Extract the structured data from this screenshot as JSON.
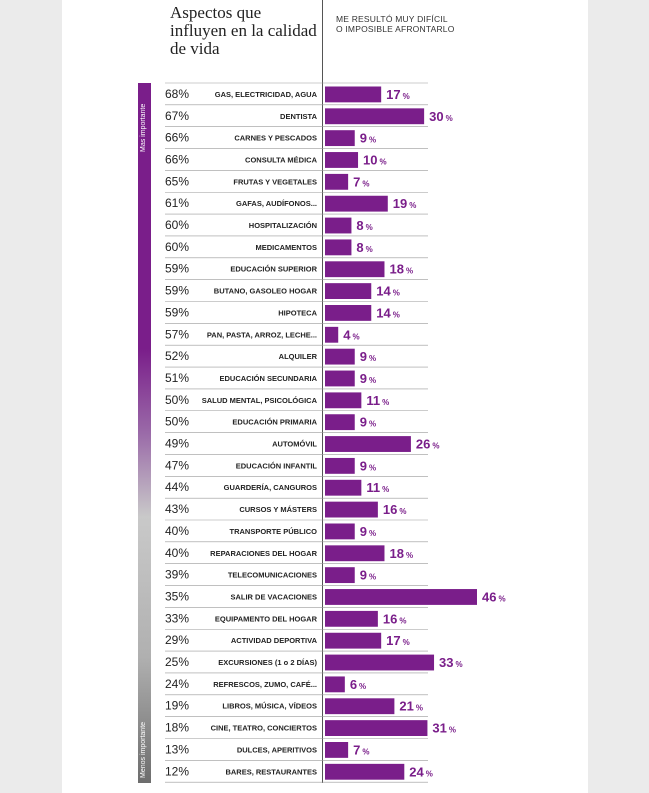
{
  "chart_data": {
    "type": "bar",
    "title": "Aspectos que influyen en la calidad de vida",
    "series_label": "ME RESULTÓ MUY DIFÍCIL O IMPOSIBLE AFRONTARLO",
    "axis_label_top": "Mas importante",
    "axis_label_bottom": "Menos importante",
    "bar_color": "#7a1e8a",
    "xlim": [
      0,
      46
    ],
    "rows": [
      {
        "importance": "68%",
        "category": "GAS, ELECTRICIDAD, AGUA",
        "value": 17
      },
      {
        "importance": "67%",
        "category": "DENTISTA",
        "value": 30
      },
      {
        "importance": "66%",
        "category": "CARNES Y PESCADOS",
        "value": 9
      },
      {
        "importance": "66%",
        "category": "CONSULTA MÉDICA",
        "value": 10
      },
      {
        "importance": "65%",
        "category": "FRUTAS Y VEGETALES",
        "value": 7
      },
      {
        "importance": "61%",
        "category": "GAFAS, AUDÍFONOS...",
        "value": 19
      },
      {
        "importance": "60%",
        "category": "HOSPITALIZACIÓN",
        "value": 8
      },
      {
        "importance": "60%",
        "category": "MEDICAMENTOS",
        "value": 8
      },
      {
        "importance": "59%",
        "category": "EDUCACIÓN SUPERIOR",
        "value": 18
      },
      {
        "importance": "59%",
        "category": "BUTANO, GASOLEO HOGAR",
        "value": 14
      },
      {
        "importance": "59%",
        "category": "HIPOTECA",
        "value": 14
      },
      {
        "importance": "57%",
        "category": "PAN, PASTA, ARROZ, LECHE...",
        "value": 4
      },
      {
        "importance": "52%",
        "category": "ALQUILER",
        "value": 9
      },
      {
        "importance": "51%",
        "category": "EDUCACIÓN SECUNDARIA",
        "value": 9
      },
      {
        "importance": "50%",
        "category": "SALUD MENTAL, PSICOLÓGICA",
        "value": 11
      },
      {
        "importance": "50%",
        "category": "EDUCACIÓN PRIMARIA",
        "value": 9
      },
      {
        "importance": "49%",
        "category": "AUTOMÓVIL",
        "value": 26
      },
      {
        "importance": "47%",
        "category": "EDUCACIÓN INFANTIL",
        "value": 9
      },
      {
        "importance": "44%",
        "category": "GUARDERÍA, CANGUROS",
        "value": 11
      },
      {
        "importance": "43%",
        "category": "CURSOS Y MÁSTERS",
        "value": 16
      },
      {
        "importance": "40%",
        "category": "TRANSPORTE PÚBLICO",
        "value": 9
      },
      {
        "importance": "40%",
        "category": "REPARACIONES DEL HOGAR",
        "value": 18
      },
      {
        "importance": "39%",
        "category": "TELECOMUNICACIONES",
        "value": 9
      },
      {
        "importance": "35%",
        "category": "SALIR DE VACACIONES",
        "value": 46
      },
      {
        "importance": "33%",
        "category": "EQUIPAMENTO DEL HOGAR",
        "value": 16
      },
      {
        "importance": "29%",
        "category": "ACTIVIDAD DEPORTIVA",
        "value": 17
      },
      {
        "importance": "25%",
        "category": "EXCURSIONES (1 o 2 DÍAS)",
        "value": 33
      },
      {
        "importance": "24%",
        "category": "REFRESCOS, ZUMO, CAFÉ...",
        "value": 6
      },
      {
        "importance": "19%",
        "category": "LIBROS, MÚSICA, VÍDEOS",
        "value": 21
      },
      {
        "importance": "18%",
        "category": "CINE, TEATRO, CONCIERTOS",
        "value": 31
      },
      {
        "importance": "13%",
        "category": "DULCES, APERITIVOS",
        "value": 7
      },
      {
        "importance": "12%",
        "category": "BARES, RESTAURANTES",
        "value": 24
      }
    ]
  }
}
